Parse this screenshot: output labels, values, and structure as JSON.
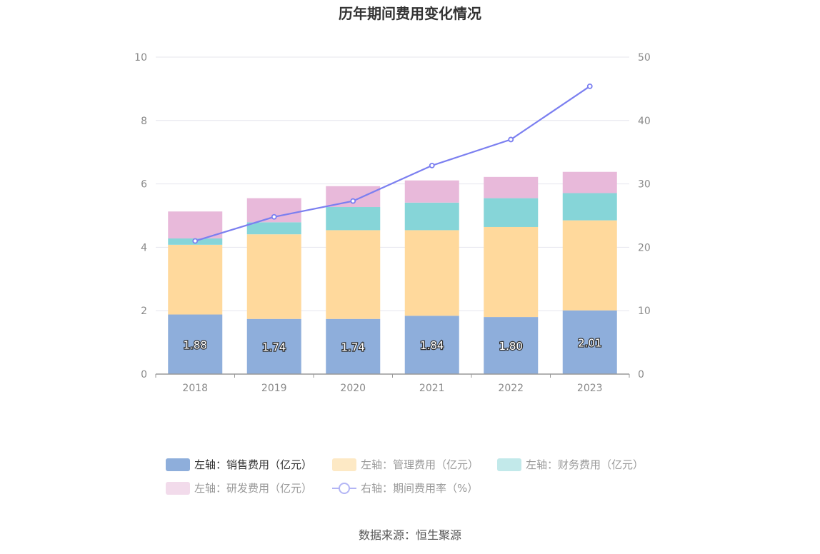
{
  "title": "历年期间费用变化情况",
  "source": "数据来源：恒生聚源",
  "colors": {
    "sales": "#8eaedb",
    "management": "#ffd99c",
    "finance": "#86d5d8",
    "rnd": "#e8b9da",
    "rate": "#7b7ff0",
    "grid": "#e6e6ee",
    "axis": "#999999"
  },
  "chart_data": {
    "type": "bar",
    "stacked": true,
    "categories": [
      "2018",
      "2019",
      "2020",
      "2021",
      "2022",
      "2023"
    ],
    "left_axis": {
      "ylim": [
        0,
        10
      ],
      "ticks": [
        "0",
        "2",
        "4",
        "6",
        "8",
        "10"
      ]
    },
    "right_axis": {
      "ylim": [
        0,
        50
      ],
      "ticks": [
        "0",
        "10",
        "20",
        "30",
        "40",
        "50"
      ]
    },
    "series": [
      {
        "key": "sales",
        "name": "左轴：销售费用（亿元）",
        "axis": "left",
        "type": "bar",
        "values": [
          1.88,
          1.74,
          1.74,
          1.84,
          1.8,
          2.01
        ],
        "labels": [
          "1.88",
          "1.74",
          "1.74",
          "1.84",
          "1.80",
          "2.01"
        ]
      },
      {
        "key": "management",
        "name": "左轴：管理费用（亿元）",
        "axis": "left",
        "type": "bar",
        "values": [
          2.2,
          2.67,
          2.8,
          2.7,
          2.84,
          2.84
        ]
      },
      {
        "key": "finance",
        "name": "左轴：财务费用（亿元）",
        "axis": "left",
        "type": "bar",
        "values": [
          0.2,
          0.38,
          0.73,
          0.87,
          0.91,
          0.86
        ]
      },
      {
        "key": "rnd",
        "name": "左轴：研发费用（亿元）",
        "axis": "left",
        "type": "bar",
        "values": [
          0.85,
          0.76,
          0.66,
          0.7,
          0.67,
          0.67
        ]
      },
      {
        "key": "rate",
        "name": "右轴：期间费用率（%）",
        "axis": "right",
        "type": "line",
        "values": [
          21.0,
          24.8,
          27.3,
          32.9,
          37.0,
          45.4
        ]
      }
    ],
    "legend": {
      "position": "bottom",
      "items": [
        {
          "key": "sales",
          "label": "左轴：销售费用（亿元）",
          "color": "#8eaedb",
          "text_color": "#333333",
          "shape": "rect"
        },
        {
          "key": "management",
          "label": "左轴：管理费用（亿元）",
          "color": "#fde9c5",
          "text_color": "#999999",
          "shape": "rect"
        },
        {
          "key": "finance",
          "label": "左轴：财务费用（亿元）",
          "color": "#c2e9ea",
          "text_color": "#999999",
          "shape": "rect"
        },
        {
          "key": "rnd",
          "label": "左轴：研发费用（亿元）",
          "color": "#f2dbeb",
          "text_color": "#999999",
          "shape": "rect"
        },
        {
          "key": "rate",
          "label": "右轴：期间费用率（%）",
          "color": "#b3b5f5",
          "text_color": "#999999",
          "shape": "line"
        }
      ]
    },
    "grid": true
  }
}
